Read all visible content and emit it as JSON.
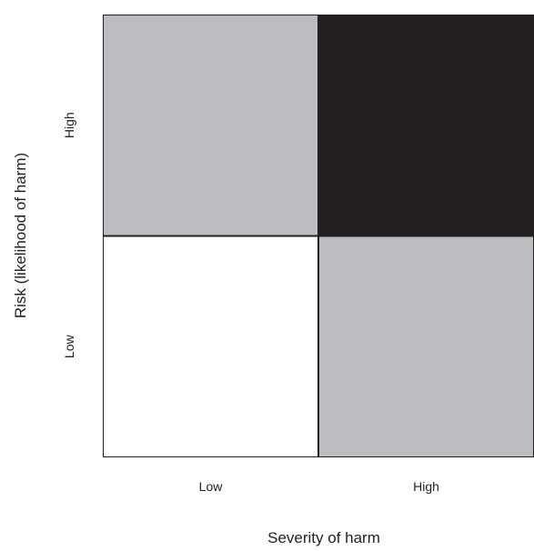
{
  "chart_data": {
    "type": "heatmap",
    "title": "",
    "xlabel": "Severity of harm",
    "ylabel": "Risk (likelihood of harm)",
    "x_categories": [
      "Low",
      "High"
    ],
    "y_categories": [
      "Low",
      "High"
    ],
    "cells": [
      {
        "x": "Low",
        "y": "High",
        "level": "medium",
        "color": "#bcbdc0"
      },
      {
        "x": "High",
        "y": "High",
        "level": "high",
        "color": "#231f20"
      },
      {
        "x": "Low",
        "y": "Low",
        "level": "low",
        "color": "#ffffff"
      },
      {
        "x": "High",
        "y": "Low",
        "level": "medium",
        "color": "#bcbdc0"
      }
    ],
    "grid": true,
    "legend": "none"
  }
}
